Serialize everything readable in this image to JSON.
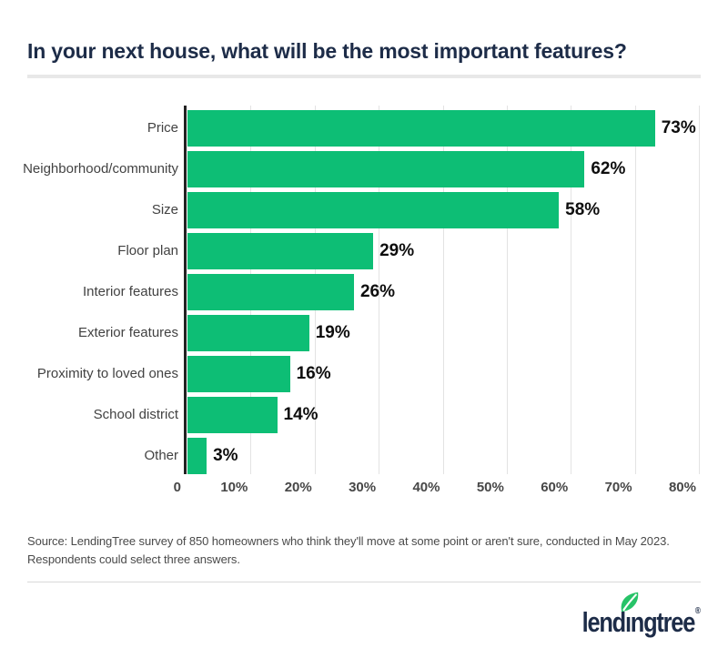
{
  "title": "In your next house, what will be the most important features?",
  "chart_data": {
    "type": "bar",
    "orientation": "horizontal",
    "title": "In your next house, what will be the most important features?",
    "categories": [
      "Price",
      "Neighborhood/community",
      "Size",
      "Floor plan",
      "Interior features",
      "Exterior features",
      "Proximity to loved ones",
      "School district",
      "Other"
    ],
    "values": [
      73,
      62,
      58,
      29,
      26,
      19,
      16,
      14,
      3
    ],
    "value_labels": [
      "73%",
      "62%",
      "58%",
      "29%",
      "26%",
      "19%",
      "16%",
      "14%",
      "3%"
    ],
    "xlim": [
      0,
      80
    ],
    "x_ticks": [
      "0",
      "10%",
      "20%",
      "30%",
      "40%",
      "50%",
      "60%",
      "70%",
      "80%"
    ],
    "grid": true,
    "legend": "none",
    "bar_color": "#0dbe75"
  },
  "source": {
    "text": "Source: LendingTree survey of 850 homeowners who think they'll move at some point or aren't sure, conducted in May 2023. Respondents could select three answers."
  },
  "footer": {
    "brand_name": "lendingtree",
    "wordmark_pre": "lend",
    "wordmark_i": "ı",
    "wordmark_post": "ngtree",
    "registered_mark": "®"
  },
  "colors": {
    "bar_green": "#0dbe75",
    "leaf_green": "#27c368",
    "brand_navy": "#1d2c48",
    "grid_gray": "#e3e3e3",
    "axis_dark": "#222222",
    "label_gray": "#424242"
  }
}
